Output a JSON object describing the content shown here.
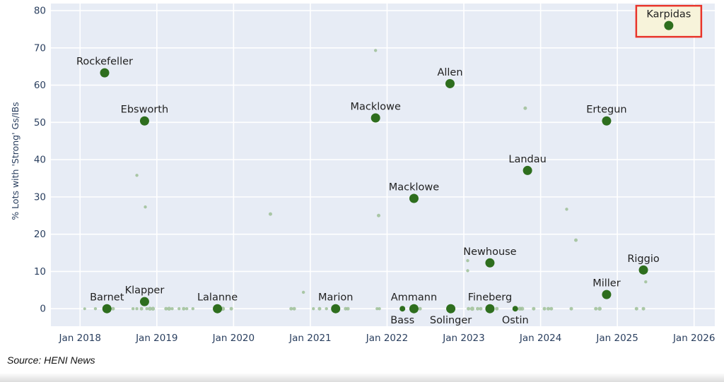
{
  "source_note": "Source: HENI News",
  "chart_data": {
    "type": "scatter",
    "title": "",
    "xlabel": "",
    "ylabel": "% Lots with 'Strong' Gs/IBs",
    "grid": true,
    "x_domain": [
      2017.62,
      2026.27
    ],
    "y_domain": [
      -4.7,
      81.9
    ],
    "y_ticks": [
      0,
      10,
      20,
      30,
      40,
      50,
      60,
      70,
      80
    ],
    "x_ticks": [
      {
        "year": 2018,
        "label": "Jan 2018"
      },
      {
        "year": 2019,
        "label": "Jan 2019"
      },
      {
        "year": 2020,
        "label": "Jan 2020"
      },
      {
        "year": 2021,
        "label": "Jan 2021"
      },
      {
        "year": 2022,
        "label": "Jan 2022"
      },
      {
        "year": 2023,
        "label": "Jan 2023"
      },
      {
        "year": 2024,
        "label": "Jan 2024"
      },
      {
        "year": 2025,
        "label": "Jan 2025"
      },
      {
        "year": 2026,
        "label": "Jan 2026"
      }
    ],
    "labeled_points": [
      {
        "name": "Rockefeller",
        "x": 2018.32,
        "y": 63.3,
        "label_pos": "above",
        "size": "large",
        "highlighted": false
      },
      {
        "name": "Ebsworth",
        "x": 2018.84,
        "y": 50.4,
        "label_pos": "above",
        "size": "large",
        "highlighted": false
      },
      {
        "name": "Barnet",
        "x": 2018.35,
        "y": 0,
        "label_pos": "above",
        "size": "large",
        "highlighted": false
      },
      {
        "name": "Klapper",
        "x": 2018.84,
        "y": 1.9,
        "label_pos": "above",
        "size": "large",
        "highlighted": false
      },
      {
        "name": "Lalanne",
        "x": 2019.79,
        "y": 0,
        "label_pos": "above",
        "size": "large",
        "highlighted": false
      },
      {
        "name": "Marion",
        "x": 2021.33,
        "y": 0,
        "label_pos": "above",
        "size": "large",
        "highlighted": false
      },
      {
        "name": "Macklowe",
        "x": 2021.85,
        "y": 51.2,
        "label_pos": "above",
        "size": "large",
        "highlighted": false
      },
      {
        "name": "Macklowe",
        "x": 2022.35,
        "y": 29.6,
        "label_pos": "above",
        "size": "large",
        "highlighted": false
      },
      {
        "name": "Bass",
        "x": 2022.2,
        "y": 0,
        "label_pos": "below",
        "size": "small",
        "highlighted": false
      },
      {
        "name": "Ammann",
        "x": 2022.35,
        "y": 0,
        "label_pos": "above",
        "size": "large",
        "highlighted": false
      },
      {
        "name": "Allen",
        "x": 2022.82,
        "y": 60.4,
        "label_pos": "above",
        "size": "large",
        "highlighted": false
      },
      {
        "name": "Solinger",
        "x": 2022.83,
        "y": 0,
        "label_pos": "below",
        "size": "large",
        "highlighted": false
      },
      {
        "name": "Fineberg",
        "x": 2023.34,
        "y": 0,
        "label_pos": "above",
        "size": "large",
        "highlighted": false
      },
      {
        "name": "Ostin",
        "x": 2023.67,
        "y": 0,
        "label_pos": "below",
        "size": "small",
        "highlighted": false
      },
      {
        "name": "Newhouse",
        "x": 2023.34,
        "y": 12.3,
        "label_pos": "above",
        "size": "large",
        "highlighted": false
      },
      {
        "name": "Landau",
        "x": 2023.83,
        "y": 37.1,
        "label_pos": "above",
        "size": "large",
        "highlighted": false
      },
      {
        "name": "Ertegun",
        "x": 2024.86,
        "y": 50.4,
        "label_pos": "above",
        "size": "large",
        "highlighted": false
      },
      {
        "name": "Miller",
        "x": 2024.86,
        "y": 3.8,
        "label_pos": "above",
        "size": "large",
        "highlighted": false
      },
      {
        "name": "Riggio",
        "x": 2025.34,
        "y": 10.4,
        "label_pos": "above",
        "size": "large",
        "highlighted": false
      },
      {
        "name": "Karpidas",
        "x": 2025.67,
        "y": 76.0,
        "label_pos": "above",
        "size": "large",
        "highlighted": true
      }
    ],
    "background_points": [
      [
        2018.74,
        35.8,
        2.2
      ],
      [
        2018.85,
        27.3,
        2.2
      ],
      [
        2020.48,
        25.4,
        2.5
      ],
      [
        2020.91,
        4.4,
        2.2
      ],
      [
        2021.85,
        69.3,
        2.2
      ],
      [
        2021.89,
        25.0,
        2.5
      ],
      [
        2023.05,
        12.9,
        2.2
      ],
      [
        2023.05,
        10.2,
        2.2
      ],
      [
        2023.8,
        53.8,
        2.5
      ],
      [
        2024.34,
        26.7,
        2.2
      ],
      [
        2024.46,
        18.4,
        2.5
      ],
      [
        2025.37,
        7.2,
        2.2
      ],
      [
        2018.06,
        0,
        2
      ],
      [
        2018.2,
        0,
        2.2
      ],
      [
        2018.43,
        0,
        2.5
      ],
      [
        2018.69,
        0,
        2.2
      ],
      [
        2018.74,
        0,
        2.2
      ],
      [
        2018.8,
        0,
        2.5
      ],
      [
        2018.87,
        0,
        2.2
      ],
      [
        2018.91,
        0,
        2.8
      ],
      [
        2018.95,
        0,
        2.8
      ],
      [
        2019.12,
        0,
        2.5
      ],
      [
        2019.16,
        0,
        2.8
      ],
      [
        2019.2,
        0,
        2.2
      ],
      [
        2019.29,
        0,
        2.2
      ],
      [
        2019.35,
        0,
        2.5
      ],
      [
        2019.39,
        0,
        2.2
      ],
      [
        2019.47,
        0,
        2.2
      ],
      [
        2019.86,
        0,
        3
      ],
      [
        2019.97,
        0,
        2.5
      ],
      [
        2020.75,
        0,
        2.5
      ],
      [
        2020.79,
        0,
        2.5
      ],
      [
        2021.04,
        0,
        2.2
      ],
      [
        2021.12,
        0,
        2.5
      ],
      [
        2021.21,
        0,
        2.2
      ],
      [
        2021.46,
        0,
        2.5
      ],
      [
        2021.49,
        0,
        2.5
      ],
      [
        2021.87,
        0,
        2.2
      ],
      [
        2021.9,
        0,
        2.2
      ],
      [
        2022.43,
        0,
        2.5
      ],
      [
        2023.06,
        0,
        2.5
      ],
      [
        2023.11,
        0,
        3
      ],
      [
        2023.18,
        0,
        2.5
      ],
      [
        2023.22,
        0,
        2.5
      ],
      [
        2023.43,
        0,
        2.5
      ],
      [
        2023.73,
        0,
        2.8
      ],
      [
        2023.76,
        0,
        2.8
      ],
      [
        2023.91,
        0,
        2.5
      ],
      [
        2024.05,
        0,
        2.5
      ],
      [
        2024.1,
        0,
        2.5
      ],
      [
        2024.14,
        0,
        2.5
      ],
      [
        2024.4,
        0,
        2.5
      ],
      [
        2024.72,
        0,
        2.5
      ],
      [
        2024.77,
        0,
        2.8
      ],
      [
        2025.25,
        0,
        2.5
      ],
      [
        2025.34,
        0,
        2.5
      ]
    ],
    "colors": {
      "plot_bg": "#e7ecf5",
      "grid": "#ffffff",
      "point": "#2e6e1e",
      "minor_point": "#9dbf97",
      "axis_text": "#2a3f5f",
      "label_text": "#1f1f1f",
      "highlight_border": "#e8352b",
      "highlight_bg": "#f7f3da"
    }
  }
}
